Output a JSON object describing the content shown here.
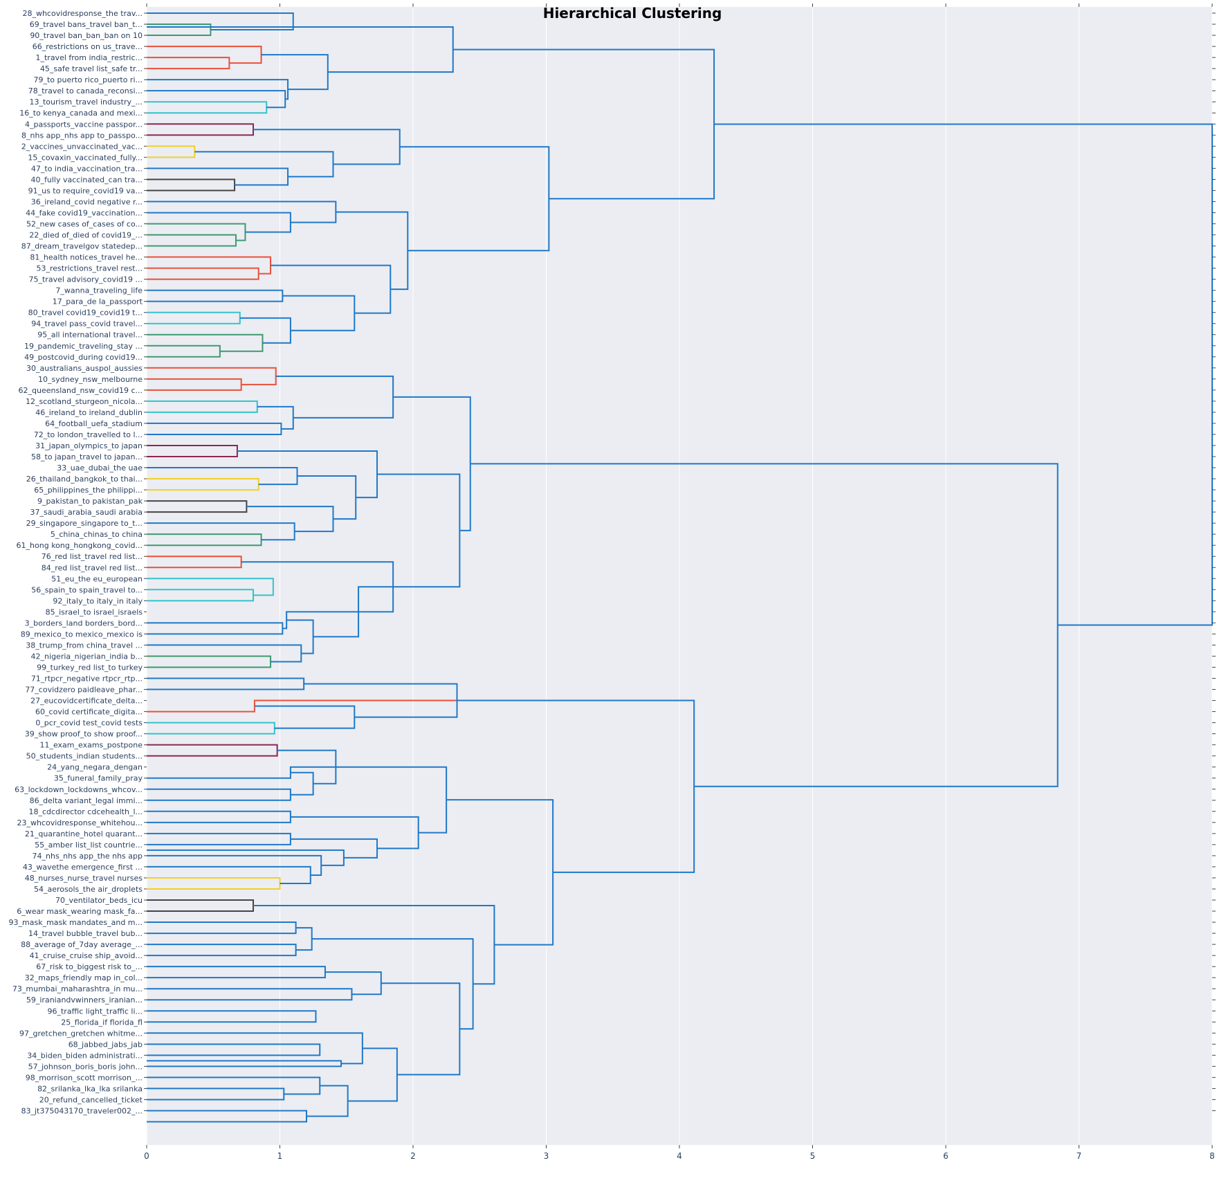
{
  "chart_data": {
    "type": "dendrogram",
    "title": "Hierarchical Clustering",
    "orientation": "horizontal",
    "xlim": [
      0,
      8
    ],
    "x_ticks": [
      "0",
      "1",
      "2",
      "3",
      "4",
      "5",
      "6",
      "7",
      "8"
    ],
    "background": "#ebedf2",
    "default_link_color": "#1f78c8",
    "leaves": [
      "28_whcovidresponse_the trav...",
      "69_travel bans_travel ban_t...",
      "90_travel ban_ban_ban on 10",
      "66_restrictions on us_trave...",
      "1_travel from india_restric...",
      "45_safe travel list_safe tr...",
      "79_to puerto rico_puerto ri...",
      "78_travel to canada_reconsi...",
      "13_tourism_travel industry_...",
      "16_to kenya_canada and mexi...",
      "4_passports_vaccine passpor...",
      "8_nhs app_nhs app to_passpo...",
      "2_vaccines_unvaccinated_vac...",
      "15_covaxin_vaccinated_fully...",
      "47_to india_vaccination_tra...",
      "40_fully vaccinated_can tra...",
      "91_us to require_covid19 va...",
      "36_ireland_covid negative r...",
      "44_fake covid19_vaccination...",
      "52_new cases of_cases of co...",
      "22_died of_died of covid19_...",
      "87_dream_travelgov statedep...",
      "81_health notices_travel he...",
      "53_restrictions_travel rest...",
      "75_travel advisory_covid19 ...",
      "7_wanna_traveling_life",
      "17_para_de la_passport",
      "80_travel covid19_covid19 t...",
      "94_travel pass_covid travel...",
      "95_all international travel...",
      "19_pandemic_traveling_stay ...",
      "49_postcovid_during covid19...",
      "30_australians_auspol_aussies",
      "10_sydney_nsw_melbourne",
      "62_queensland_nsw_covid19 c...",
      "12_scotland_sturgeon_nicola...",
      "46_ireland_to ireland_dublin",
      "64_football_uefa_stadium",
      "72_to london_travelled to l...",
      "31_japan_olympics_to japan",
      "58_to japan_travel to japan...",
      "33_uae_dubai_the uae",
      "26_thailand_bangkok_to thai...",
      "65_philippines_the philippi...",
      "9_pakistan_to pakistan_pak",
      "37_saudi_arabia_saudi arabia",
      "29_singapore_singapore to_t...",
      "5_china_chinas_to china",
      "61_hong kong_hongkong_covid...",
      "76_red list_travel red list...",
      "84_red list_travel red list...",
      "51_eu_the eu_european",
      "56_spain_to spain_travel to...",
      "92_italy_to italy_in italy",
      "85_israel_to israel_israels",
      "3_borders_land borders_bord...",
      "89_mexico_to mexico_mexico is",
      "38_trump_from china_travel ...",
      "42_nigeria_nigerian_india b...",
      "99_turkey_red list_to turkey",
      "71_rtpcr_negative rtpcr_rtp...",
      "77_covidzero paidleave_phar...",
      "27_eucovidcertificate_delta...",
      "60_covid certificate_digita...",
      "0_pcr_covid test_covid tests",
      "39_show proof_to show proof...",
      "11_exam_exams_postpone",
      "50_students_indian students...",
      "24_yang_negara_dengan",
      "35_funeral_family_pray",
      "63_lockdown_lockdowns_whcov...",
      "86_delta variant_legal immi...",
      "18_cdcdirector cdcehealth_l...",
      "23_whcovidresponse_whitehou...",
      "21_quarantine_hotel quarant...",
      "55_amber list_list countrie...",
      "74_nhs_nhs app_the nhs app",
      "43_wavethe emergence_first ...",
      "48_nurses_nurse_travel nurses",
      "54_aerosols_the air_droplets",
      "70_ventilator_beds_icu",
      "6_wear mask_wearing mask_fa...",
      "93_mask_mask mandates_and m...",
      "14_travel bubble_travel bub...",
      "88_average of_7day average_...",
      "41_cruise_cruise ship_avoid...",
      "67_risk to_biggest risk to_...",
      "32_maps_friendly map in_col...",
      "73_mumbai_maharashtra_in mu...",
      "59_iraniandvwinners_iranian...",
      "96_traffic light_traffic li...",
      "25_florida_if florida_fl",
      "97_gretchen_gretchen whitme...",
      "68_jabbed_jabs_jab",
      "34_biden_biden administrati...",
      "57_johnson_boris_boris john...",
      "98_morrison_scott morrison_...",
      "82_srilanka_lka_lka srilanka",
      "20_refund_cancelled_ticket",
      "83_jt375043170_traveler002_..."
    ],
    "links": [
      {
        "a": 1,
        "b": 2,
        "h": 0.48,
        "color": "#3d9970"
      },
      {
        "a": 0,
        "b": 1.5,
        "h": 1.1
      },
      {
        "a": 4,
        "b": 5,
        "h": 0.62,
        "color": "#e8503a"
      },
      {
        "a": 3,
        "b": 4.5,
        "h": 0.86,
        "color": "#e8503a"
      },
      {
        "a": 8,
        "b": 9,
        "h": 0.9,
        "color": "#33c2cc"
      },
      {
        "a": 7,
        "b": 8.5,
        "h": 1.04
      },
      {
        "a": 6,
        "b": 7.75,
        "h": 1.06
      },
      {
        "a": 3.75,
        "b": 6.875,
        "h": 1.36
      },
      {
        "a": 1.25,
        "b": 5.3125,
        "h": 2.3
      },
      {
        "a": 10,
        "b": 11,
        "h": 0.8,
        "color": "#8b2752"
      },
      {
        "a": 12,
        "b": 13,
        "h": 0.36,
        "color": "#f0d02a"
      },
      {
        "a": 15,
        "b": 16,
        "h": 0.66,
        "color": "#444444"
      },
      {
        "a": 14,
        "b": 15.5,
        "h": 1.06
      },
      {
        "a": 12.5,
        "b": 14.75,
        "h": 1.4
      },
      {
        "a": 10.5,
        "b": 13.625,
        "h": 1.9
      },
      {
        "a": 20,
        "b": 21,
        "h": 0.67,
        "color": "#3d9970"
      },
      {
        "a": 19,
        "b": 20.5,
        "h": 0.74,
        "color": "#3d9970"
      },
      {
        "a": 18,
        "b": 19.75,
        "h": 1.08
      },
      {
        "a": 17,
        "b": 18.875,
        "h": 1.42
      },
      {
        "a": 23,
        "b": 24,
        "h": 0.84,
        "color": "#e8503a"
      },
      {
        "a": 22,
        "b": 23.5,
        "h": 0.93,
        "color": "#e8503a"
      },
      {
        "a": 25,
        "b": 26,
        "h": 1.02
      },
      {
        "a": 27,
        "b": 28,
        "h": 0.7,
        "color": "#33c2cc"
      },
      {
        "a": 30,
        "b": 31,
        "h": 0.55,
        "color": "#3d9970"
      },
      {
        "a": 29,
        "b": 30.5,
        "h": 0.87,
        "color": "#3d9970"
      },
      {
        "a": 27.5,
        "b": 29.75,
        "h": 1.08
      },
      {
        "a": 25.5,
        "b": 28.625,
        "h": 1.56
      },
      {
        "a": 22.75,
        "b": 27.0625,
        "h": 1.83
      },
      {
        "a": 17.9375,
        "b": 24.90625,
        "h": 1.96
      },
      {
        "a": 12.0625,
        "b": 21.421875,
        "h": 3.02
      },
      {
        "a": 3.28125,
        "b": 16.7421875,
        "h": 4.26
      },
      {
        "a": 33,
        "b": 34,
        "h": 0.71,
        "color": "#e8503a"
      },
      {
        "a": 32,
        "b": 33.5,
        "h": 0.97,
        "color": "#e8503a"
      },
      {
        "a": 35,
        "b": 36,
        "h": 0.83,
        "color": "#33c2cc"
      },
      {
        "a": 37,
        "b": 38,
        "h": 1.01
      },
      {
        "a": 35.5,
        "b": 37.5,
        "h": 1.1
      },
      {
        "a": 32.75,
        "b": 36.5,
        "h": 1.85
      },
      {
        "a": 39,
        "b": 40,
        "h": 0.68,
        "color": "#8b2752"
      },
      {
        "a": 42,
        "b": 43,
        "h": 0.84,
        "color": "#f0d02a"
      },
      {
        "a": 41,
        "b": 42.5,
        "h": 1.13
      },
      {
        "a": 44,
        "b": 45,
        "h": 0.75,
        "color": "#444444"
      },
      {
        "a": 47,
        "b": 48,
        "h": 0.86,
        "color": "#3d9970"
      },
      {
        "a": 46,
        "b": 47.5,
        "h": 1.11
      },
      {
        "a": 44.5,
        "b": 46.75,
        "h": 1.4
      },
      {
        "a": 41.75,
        "b": 45.625,
        "h": 1.57
      },
      {
        "a": 39.5,
        "b": 43.6875,
        "h": 1.73
      },
      {
        "a": 49,
        "b": 50,
        "h": 0.71,
        "color": "#e8503a"
      },
      {
        "a": 52,
        "b": 53,
        "h": 0.8,
        "color": "#33c2cc"
      },
      {
        "a": 51,
        "b": 52.5,
        "h": 0.95,
        "color": "#33c2cc"
      },
      {
        "a": 55,
        "b": 56,
        "h": 1.02
      },
      {
        "a": 54,
        "b": 55.5,
        "h": 1.05
      },
      {
        "a": 58,
        "b": 59,
        "h": 0.93,
        "color": "#3d9970"
      },
      {
        "a": 57,
        "b": 58.5,
        "h": 1.16
      },
      {
        "a": 54.75,
        "b": 57.75,
        "h": 1.25
      },
      {
        "a": 51.75,
        "b": 56.25,
        "h": 1.59
      },
      {
        "a": 49.5,
        "b": 54,
        "h": 1.85
      },
      {
        "a": 41.59375,
        "b": 51.75,
        "h": 2.35
      },
      {
        "a": 34.625,
        "b": 46.671875,
        "h": 2.43
      },
      {
        "a": 60,
        "b": 61,
        "h": 1.18
      },
      {
        "a": 62,
        "b": 63,
        "h": 0.81,
        "color": "#e8503a"
      },
      {
        "a": 64,
        "b": 65,
        "h": 0.96,
        "color": "#33c2cc"
      },
      {
        "a": 62.5,
        "b": 64.5,
        "h": 1.56
      },
      {
        "a": 60.5,
        "b": 63.5,
        "h": 2.33
      },
      {
        "a": 66,
        "b": 67,
        "h": 0.98,
        "color": "#8b2752"
      },
      {
        "a": 68,
        "b": 69,
        "h": 1.08
      },
      {
        "a": 70,
        "b": 71,
        "h": 1.08
      },
      {
        "a": 68.5,
        "b": 70.5,
        "h": 1.25
      },
      {
        "a": 66.5,
        "b": 69.5,
        "h": 1.42
      },
      {
        "a": 72,
        "b": 73,
        "h": 1.08
      },
      {
        "a": 74,
        "b": 75,
        "h": 1.08
      },
      {
        "a": 78,
        "b": 79,
        "h": 1.0,
        "color": "#f0d02a"
      },
      {
        "a": 77,
        "b": 78.5,
        "h": 1.23
      },
      {
        "a": 76,
        "b": 77.75,
        "h": 1.31
      },
      {
        "a": 75.5,
        "b": 76.875,
        "h": 1.48
      },
      {
        "a": 74.5,
        "b": 76.1875,
        "h": 1.73
      },
      {
        "a": 72.5,
        "b": 75.34375,
        "h": 2.04
      },
      {
        "a": 68,
        "b": 73.921875,
        "h": 2.25
      },
      {
        "a": 80,
        "b": 81,
        "h": 0.8,
        "color": "#444444"
      },
      {
        "a": 82,
        "b": 83,
        "h": 1.12
      },
      {
        "a": 84,
        "b": 85,
        "h": 1.12
      },
      {
        "a": 82.5,
        "b": 84.5,
        "h": 1.24
      },
      {
        "a": 86,
        "b": 87,
        "h": 1.34
      },
      {
        "a": 88,
        "b": 89,
        "h": 1.54
      },
      {
        "a": 86.5,
        "b": 88.5,
        "h": 1.76
      },
      {
        "a": 90,
        "b": 91,
        "h": 1.27
      },
      {
        "a": 93,
        "b": 94,
        "h": 1.3
      },
      {
        "a": 94.5,
        "b": 95,
        "h": 1.46
      },
      {
        "a": 92,
        "b": 94.75,
        "h": 1.62
      },
      {
        "a": 97,
        "b": 98,
        "h": 1.03
      },
      {
        "a": 96,
        "b": 97.5,
        "h": 1.3
      },
      {
        "a": 99,
        "b": 100,
        "h": 1.2
      },
      {
        "a": 96.75,
        "b": 99.5,
        "h": 1.51
      },
      {
        "a": 93.375,
        "b": 98.125,
        "h": 1.88
      },
      {
        "a": 87.5,
        "b": 95.75,
        "h": 2.35
      },
      {
        "a": 83.5,
        "b": 91.625,
        "h": 2.45
      },
      {
        "a": 80.5,
        "b": 87.5625,
        "h": 2.61
      },
      {
        "a": 70.9609375,
        "b": 84.03125,
        "h": 3.05
      },
      {
        "a": 62,
        "b": 77.49609375,
        "h": 4.11
      },
      {
        "a": 40.6484375,
        "b": 69.748046875,
        "h": 6.84
      },
      {
        "a": 10.01171875,
        "b": 55.1982421875,
        "h": 8.0
      }
    ]
  }
}
